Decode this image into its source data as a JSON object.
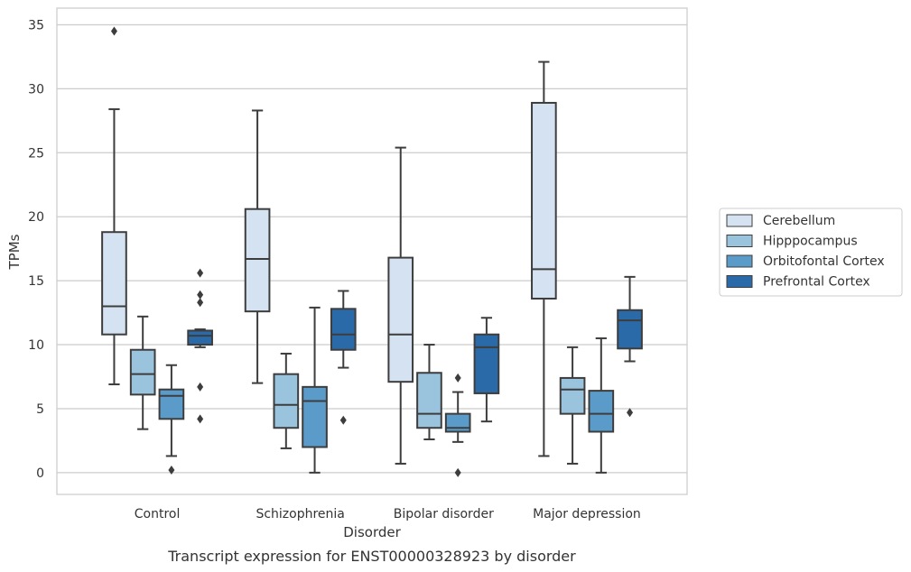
{
  "chart_data": {
    "type": "box",
    "title": "",
    "caption": "Transcript expression for ENST00000328923 by disorder",
    "xlabel": "Disorder",
    "ylabel": "TPMs",
    "ylim": [
      -1.7,
      36.3
    ],
    "yticks": [
      "0",
      "5",
      "10",
      "15",
      "20",
      "25",
      "30",
      "35"
    ],
    "grid": true,
    "legend_position": "right",
    "categories": [
      "Control",
      "Schizophrenia",
      "Bipolar disorder",
      "Major depression"
    ],
    "series": [
      {
        "name": "Cerebellum",
        "color": "#d5e2f1",
        "boxes": [
          {
            "whisker_low": 6.9,
            "q1": 10.8,
            "median": 13.0,
            "q3": 18.8,
            "whisker_high": 28.4,
            "outliers": [
              34.5
            ]
          },
          {
            "whisker_low": 7.0,
            "q1": 12.6,
            "median": 16.7,
            "q3": 20.6,
            "whisker_high": 28.3,
            "outliers": []
          },
          {
            "whisker_low": 0.7,
            "q1": 7.1,
            "median": 10.8,
            "q3": 16.8,
            "whisker_high": 25.4,
            "outliers": []
          },
          {
            "whisker_low": 1.3,
            "q1": 13.6,
            "median": 15.9,
            "q3": 28.9,
            "whisker_high": 32.1,
            "outliers": []
          }
        ]
      },
      {
        "name": "Hipppocampus",
        "color": "#9ac3de",
        "boxes": [
          {
            "whisker_low": 3.4,
            "q1": 6.1,
            "median": 7.7,
            "q3": 9.6,
            "whisker_high": 12.2,
            "outliers": []
          },
          {
            "whisker_low": 1.9,
            "q1": 3.5,
            "median": 5.3,
            "q3": 7.7,
            "whisker_high": 9.3,
            "outliers": []
          },
          {
            "whisker_low": 2.6,
            "q1": 3.5,
            "median": 4.6,
            "q3": 7.8,
            "whisker_high": 10.0,
            "outliers": []
          },
          {
            "whisker_low": 0.7,
            "q1": 4.6,
            "median": 6.5,
            "q3": 7.4,
            "whisker_high": 9.8,
            "outliers": []
          }
        ]
      },
      {
        "name": "Orbitofontal Cortex",
        "color": "#5b9bc9",
        "boxes": [
          {
            "whisker_low": 1.3,
            "q1": 4.2,
            "median": 6.0,
            "q3": 6.5,
            "whisker_high": 8.4,
            "outliers": [
              0.2
            ]
          },
          {
            "whisker_low": 0.0,
            "q1": 2.0,
            "median": 5.6,
            "q3": 6.7,
            "whisker_high": 12.9,
            "outliers": []
          },
          {
            "whisker_low": 2.4,
            "q1": 3.2,
            "median": 3.5,
            "q3": 4.6,
            "whisker_high": 6.3,
            "outliers": [
              7.4,
              0.0
            ]
          },
          {
            "whisker_low": 0.0,
            "q1": 3.2,
            "median": 4.6,
            "q3": 6.4,
            "whisker_high": 10.5,
            "outliers": []
          }
        ]
      },
      {
        "name": "Prefrontal Cortex",
        "color": "#2b6aa8",
        "boxes": [
          {
            "whisker_low": 9.8,
            "q1": 10.0,
            "median": 10.7,
            "q3": 11.1,
            "whisker_high": 11.2,
            "outliers": [
              15.6,
              13.9,
              13.3,
              6.7,
              4.2
            ]
          },
          {
            "whisker_low": 8.2,
            "q1": 9.6,
            "median": 10.8,
            "q3": 12.8,
            "whisker_high": 14.2,
            "outliers": [
              4.1
            ]
          },
          {
            "whisker_low": 4.0,
            "q1": 6.2,
            "median": 9.8,
            "q3": 10.8,
            "whisker_high": 12.1,
            "outliers": []
          },
          {
            "whisker_low": 8.7,
            "q1": 9.7,
            "median": 11.9,
            "q3": 12.7,
            "whisker_high": 15.3,
            "outliers": [
              4.7
            ]
          }
        ]
      }
    ]
  }
}
